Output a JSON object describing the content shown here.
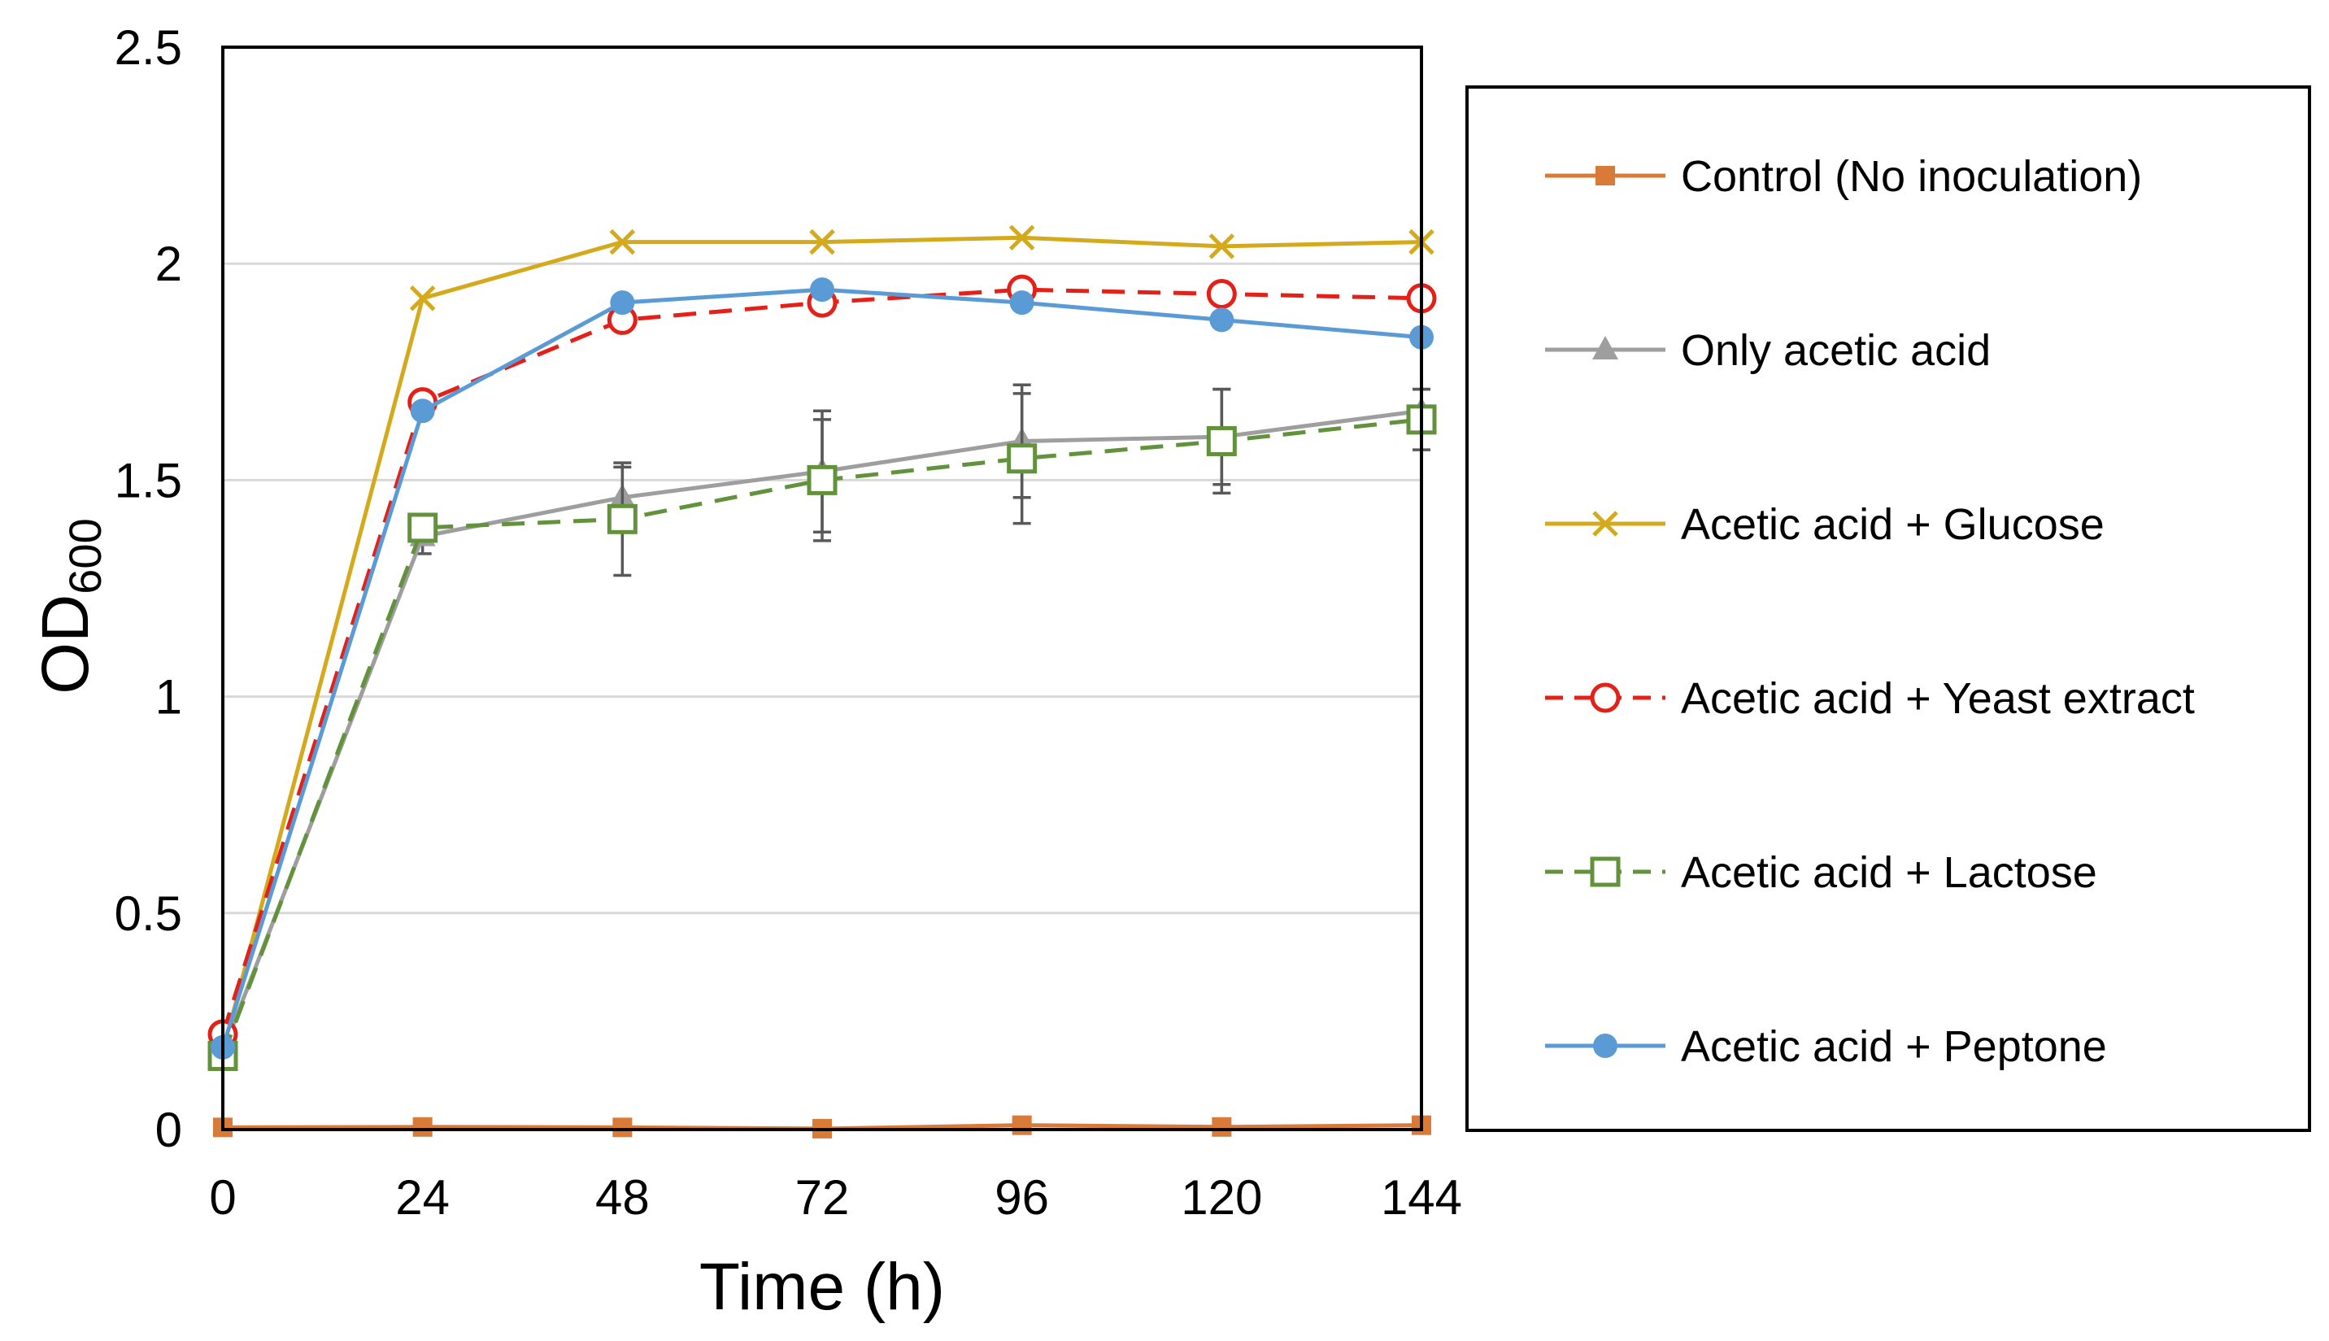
{
  "chart_data": {
    "type": "line",
    "title": "",
    "xlabel": "Time (h)",
    "ylabel": {
      "main": "OD",
      "subscript": "600"
    },
    "x": [
      0,
      24,
      48,
      72,
      96,
      120,
      144
    ],
    "x_ticks": [
      "0",
      "24",
      "48",
      "72",
      "96",
      "120",
      "144"
    ],
    "xlim": [
      0,
      144
    ],
    "ylim": [
      0,
      2.5
    ],
    "y_ticks": [
      "0",
      "0.5",
      "1",
      "1.5",
      "2",
      "2.5"
    ],
    "y_tick_values": [
      0,
      0.5,
      1,
      1.5,
      2,
      2.5
    ],
    "grid": "horizontal",
    "legend_position": "right",
    "series": [
      {
        "key": "control",
        "name": "Control (No inoculation)",
        "color": "#D97A38",
        "dash": "solid",
        "marker": "filled-square",
        "values": [
          0.005,
          0.006,
          0.005,
          0.002,
          0.01,
          0.006,
          0.01
        ]
      },
      {
        "key": "only-acetic",
        "name": "Only acetic acid",
        "color": "#9E9E9E",
        "dash": "solid",
        "marker": "filled-triangle",
        "values": [
          0.18,
          1.37,
          1.46,
          1.52,
          1.59,
          1.6,
          1.66
        ],
        "errors": [
          null,
          0.04,
          0.07,
          0.14,
          0.13,
          0.11,
          0.05
        ]
      },
      {
        "key": "glucose",
        "name": "Acetic acid + Glucose",
        "color": "#D4A91C",
        "dash": "solid",
        "marker": "x",
        "values": [
          0.18,
          1.92,
          2.05,
          2.05,
          2.06,
          2.04,
          2.05
        ]
      },
      {
        "key": "yeast",
        "name": "Acetic acid + Yeast extract",
        "color": "#E32119",
        "dash": "dashed",
        "marker": "open-circle",
        "values": [
          0.22,
          1.68,
          1.87,
          1.91,
          1.94,
          1.93,
          1.92
        ]
      },
      {
        "key": "lactose",
        "name": "Acetic acid + Lactose",
        "color": "#62923C",
        "dash": "dashed",
        "marker": "open-square",
        "values": [
          0.17,
          1.39,
          1.41,
          1.5,
          1.55,
          1.59,
          1.64
        ],
        "errors": [
          null,
          0.03,
          0.13,
          0.14,
          0.15,
          0.12,
          0.07
        ]
      },
      {
        "key": "peptone",
        "name": "Acetic acid + Peptone",
        "color": "#5B9BD5",
        "dash": "solid",
        "marker": "filled-circle",
        "values": [
          0.19,
          1.66,
          1.91,
          1.94,
          1.91,
          1.87,
          1.83
        ]
      }
    ]
  }
}
